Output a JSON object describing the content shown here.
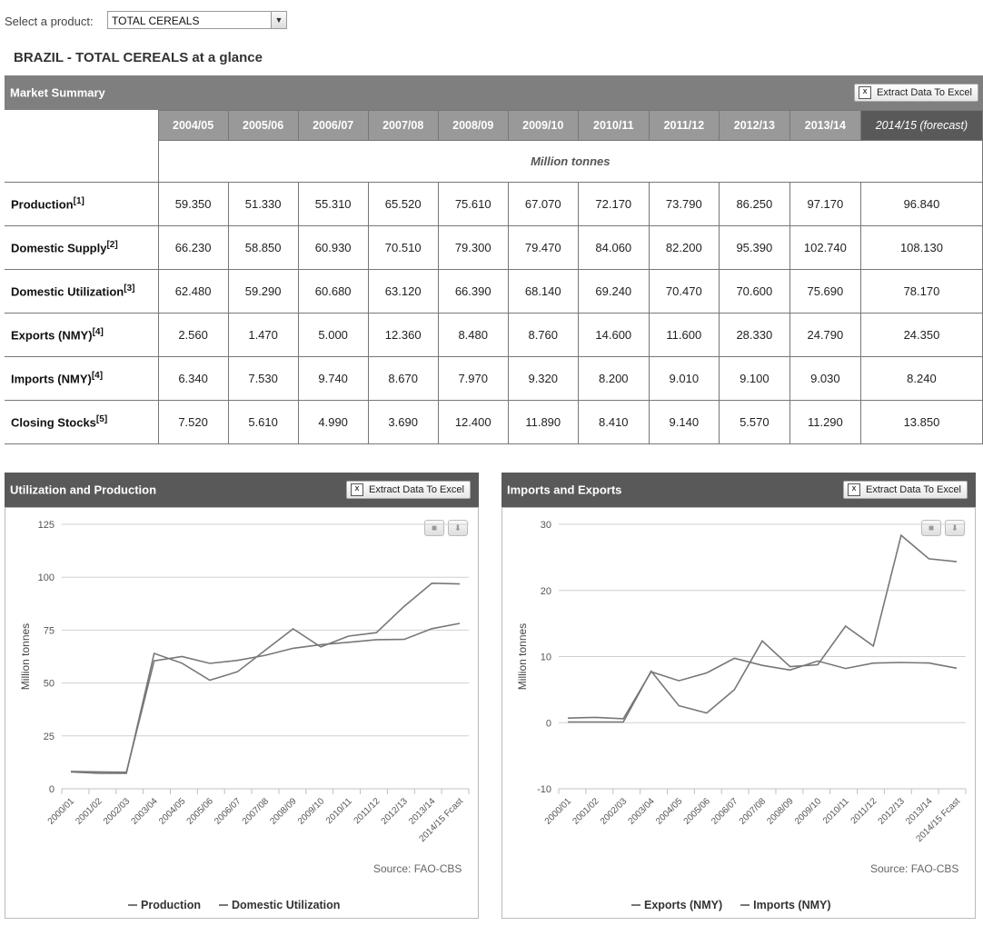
{
  "selector": {
    "label": "Select a product:",
    "value": "TOTAL CEREALS"
  },
  "page_title": "BRAZIL - TOTAL CEREALS at a glance",
  "market_summary": {
    "title": "Market Summary",
    "excel_label": "Extract Data To Excel",
    "years": [
      "2004/05",
      "2005/06",
      "2006/07",
      "2007/08",
      "2008/09",
      "2009/10",
      "2010/11",
      "2011/12",
      "2012/13",
      "2013/14",
      "2014/15 (forecast)"
    ],
    "unit": "Million tonnes",
    "rows": [
      {
        "label": "Production",
        "note": "[1]",
        "values": [
          "59.350",
          "51.330",
          "55.310",
          "65.520",
          "75.610",
          "67.070",
          "72.170",
          "73.790",
          "86.250",
          "97.170",
          "96.840"
        ]
      },
      {
        "label": "Domestic Supply",
        "note": "[2]",
        "values": [
          "66.230",
          "58.850",
          "60.930",
          "70.510",
          "79.300",
          "79.470",
          "84.060",
          "82.200",
          "95.390",
          "102.740",
          "108.130"
        ]
      },
      {
        "label": "Domestic Utilization",
        "note": "[3]",
        "values": [
          "62.480",
          "59.290",
          "60.680",
          "63.120",
          "66.390",
          "68.140",
          "69.240",
          "70.470",
          "70.600",
          "75.690",
          "78.170"
        ]
      },
      {
        "label": "Exports (NMY)",
        "note": "[4]",
        "values": [
          "2.560",
          "1.470",
          "5.000",
          "12.360",
          "8.480",
          "8.760",
          "14.600",
          "11.600",
          "28.330",
          "24.790",
          "24.350"
        ]
      },
      {
        "label": "Imports (NMY)",
        "note": "[4]",
        "values": [
          "6.340",
          "7.530",
          "9.740",
          "8.670",
          "7.970",
          "9.320",
          "8.200",
          "9.010",
          "9.100",
          "9.030",
          "8.240"
        ]
      },
      {
        "label": "Closing Stocks",
        "note": "[5]",
        "values": [
          "7.520",
          "5.610",
          "4.990",
          "3.690",
          "12.400",
          "11.890",
          "8.410",
          "9.140",
          "5.570",
          "11.290",
          "13.850"
        ]
      }
    ]
  },
  "charts_panel": {
    "left_title": "Utilization and Production",
    "right_title": "Imports and Exports",
    "excel_label": "Extract Data To Excel",
    "source": "Source: FAO-CBS",
    "line_color": "#777777"
  },
  "chart_data": [
    {
      "type": "line",
      "title": "",
      "ylabel": "Million tonnes",
      "xlabel": "",
      "ylim": [
        0,
        125
      ],
      "yticks": [
        0,
        25,
        50,
        75,
        100,
        125
      ],
      "grid": true,
      "legend_position": "bottom",
      "categories": [
        "2000/01",
        "2001/02",
        "2002/03",
        "2003/04",
        "2004/05",
        "2005/06",
        "2006/07",
        "2007/08",
        "2008/09",
        "2009/10",
        "2010/11",
        "2011/12",
        "2012/13",
        "2013/14",
        "2014/15 Fcast"
      ],
      "series": [
        {
          "name": "Production",
          "values": [
            8.0,
            7.3,
            7.3,
            64.0,
            59.35,
            51.33,
            55.31,
            65.52,
            75.61,
            67.07,
            72.17,
            73.79,
            86.25,
            97.17,
            96.84
          ]
        },
        {
          "name": "Domestic Utilization",
          "values": [
            8.2,
            8.0,
            7.8,
            60.5,
            62.48,
            59.29,
            60.68,
            63.12,
            66.39,
            68.14,
            69.24,
            70.47,
            70.6,
            75.69,
            78.17
          ]
        }
      ]
    },
    {
      "type": "line",
      "title": "",
      "ylabel": "Million tonnes",
      "xlabel": "",
      "ylim": [
        -10,
        30
      ],
      "yticks": [
        -10,
        0,
        10,
        20,
        30
      ],
      "grid": true,
      "legend_position": "bottom",
      "categories": [
        "2000/01",
        "2001/02",
        "2002/03",
        "2003/04",
        "2004/05",
        "2005/06",
        "2006/07",
        "2007/08",
        "2008/09",
        "2009/10",
        "2010/11",
        "2011/12",
        "2012/13",
        "2013/14",
        "2014/15 Fcast"
      ],
      "series": [
        {
          "name": "Exports (NMY)",
          "values": [
            0.1,
            0.1,
            0.1,
            7.8,
            2.56,
            1.47,
            5.0,
            12.36,
            8.48,
            8.76,
            14.6,
            11.6,
            28.33,
            24.79,
            24.35
          ]
        },
        {
          "name": "Imports (NMY)",
          "values": [
            0.7,
            0.8,
            0.6,
            7.7,
            6.34,
            7.53,
            9.74,
            8.67,
            7.97,
            9.32,
            8.2,
            9.01,
            9.1,
            9.03,
            8.24
          ]
        }
      ]
    }
  ]
}
